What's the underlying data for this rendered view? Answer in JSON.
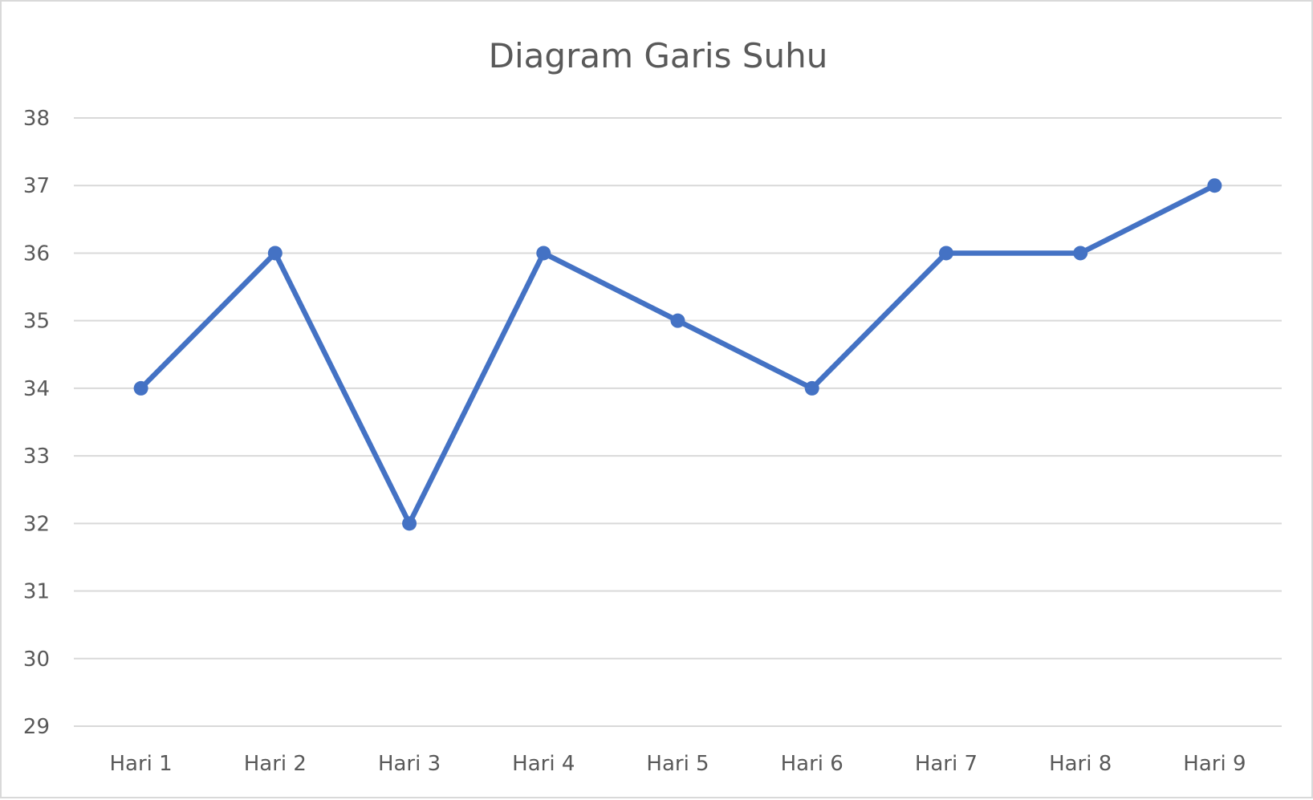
{
  "chart_data": {
    "type": "line",
    "title": "Diagram Garis Suhu",
    "xlabel": "",
    "ylabel": "",
    "categories": [
      "Hari 1",
      "Hari 2",
      "Hari 3",
      "Hari 4",
      "Hari 5",
      "Hari 6",
      "Hari 7",
      "Hari 8",
      "Hari 9"
    ],
    "series": [
      {
        "values": [
          34,
          36,
          32,
          36,
          35,
          34,
          36,
          36,
          37
        ],
        "color": "#4472c4"
      }
    ],
    "ylim": [
      29,
      38
    ],
    "yticks": [
      "29",
      "30",
      "31",
      "32",
      "33",
      "34",
      "35",
      "36",
      "37",
      "38"
    ],
    "grid": true,
    "legend": "none",
    "markers": true
  }
}
